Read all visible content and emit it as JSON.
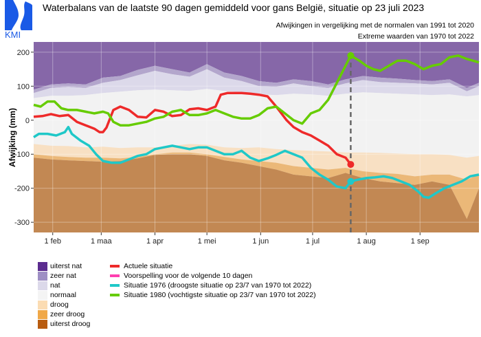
{
  "header": {
    "logo_text": "KMI",
    "title": "Waterbalans van de laatste 90 dagen gemiddeld voor gans België, situatie op 23 juli 2023",
    "subtitle1": "Afwijkingen in vergelijking met de normalen van 1991 tot 2020",
    "subtitle2": "Extreme waarden van 1970 tot 2022"
  },
  "legend_categories": [
    {
      "label": "uiterst nat",
      "color": "#5b2c8f"
    },
    {
      "label": "zeer nat",
      "color": "#9e8fc4"
    },
    {
      "label": "nat",
      "color": "#dcd9ea"
    },
    {
      "label": "normaal",
      "color": "#f4f4f4"
    },
    {
      "label": "droog",
      "color": "#fbdcb3"
    },
    {
      "label": "zeer droog",
      "color": "#f0a848"
    },
    {
      "label": "uiterst droog",
      "color": "#b85c10"
    }
  ],
  "legend_lines": [
    {
      "label": "Actuele situatie",
      "color": "#ee2a2a"
    },
    {
      "label": "Voorspelling voor de volgende 10 dagen",
      "color": "#ff3fb0"
    },
    {
      "label": "Situatie 1976 (droogste situatie op 23/7 van 1970 tot 2022)",
      "color": "#1fc8c8"
    },
    {
      "label": "Situatie 1980 (vochtigste situatie op 23/7 van 1970 tot 2022)",
      "color": "#66cc00"
    }
  ],
  "chart_data": {
    "type": "area",
    "title": "Waterbalans van de laatste 90 dagen gemiddeld voor gans België, situatie op 23 juli 2023",
    "xlabel": "",
    "ylabel": "Afwijking (mm)",
    "ylim": [
      -330,
      230
    ],
    "yticks": [
      200,
      100,
      0,
      -100,
      -200,
      -300
    ],
    "xtick_labels": [
      "1 feb",
      "1 maa",
      "1 apr",
      "1 mei",
      "1 jun",
      "1 jul",
      "1 aug",
      "1 sep"
    ],
    "xtick_days": [
      31,
      59,
      90,
      120,
      151,
      181,
      212,
      243
    ],
    "x_range_days": [
      20,
      277
    ],
    "current_date_day": 203,
    "grid": true,
    "bands_x_days": [
      20,
      30,
      40,
      50,
      60,
      70,
      80,
      90,
      100,
      110,
      120,
      130,
      140,
      150,
      160,
      170,
      180,
      190,
      200,
      210,
      220,
      230,
      240,
      250,
      260,
      270,
      277
    ],
    "bands": {
      "zeer_nat_top": [
        90,
        105,
        108,
        105,
        125,
        130,
        148,
        160,
        150,
        140,
        165,
        140,
        130,
        115,
        110,
        120,
        115,
        105,
        120,
        130,
        125,
        122,
        118,
        115,
        120,
        95,
        110
      ],
      "nat_top": [
        80,
        95,
        98,
        95,
        110,
        118,
        132,
        145,
        135,
        128,
        150,
        125,
        115,
        100,
        98,
        108,
        100,
        95,
        108,
        118,
        112,
        110,
        108,
        105,
        110,
        85,
        100
      ],
      "normaal_top": [
        65,
        72,
        72,
        74,
        80,
        84,
        88,
        90,
        88,
        86,
        92,
        86,
        82,
        76,
        74,
        78,
        76,
        72,
        78,
        82,
        80,
        78,
        76,
        74,
        76,
        70,
        74
      ],
      "droog_top": [
        -70,
        -75,
        -76,
        -80,
        -78,
        -82,
        -80,
        -80,
        -75,
        -70,
        -72,
        -80,
        -82,
        -80,
        -85,
        -88,
        -90,
        -92,
        -95,
        -95,
        -96,
        -98,
        -100,
        -100,
        -102,
        -110,
        -105
      ],
      "zeer_droog_top": [
        -100,
        -105,
        -108,
        -110,
        -110,
        -112,
        -108,
        -100,
        -95,
        -95,
        -100,
        -108,
        -115,
        -120,
        -125,
        -135,
        -140,
        -145,
        -140,
        -150,
        -155,
        -158,
        -165,
        -160,
        -160,
        -175,
        -160
      ],
      "uiterst_droog_top": [
        -110,
        -115,
        -118,
        -120,
        -122,
        -120,
        -112,
        -102,
        -100,
        -100,
        -105,
        -118,
        -125,
        -135,
        -145,
        -160,
        -165,
        -170,
        -155,
        -170,
        -180,
        -185,
        -190,
        -180,
        -190,
        -290,
        -200
      ]
    },
    "series": [
      {
        "name": "Actuele situatie",
        "color": "#ee2a2a",
        "x": [
          20,
          25,
          30,
          35,
          40,
          45,
          50,
          55,
          58,
          60,
          62,
          66,
          70,
          75,
          80,
          85,
          90,
          95,
          100,
          105,
          110,
          115,
          120,
          125,
          128,
          132,
          136,
          140,
          145,
          150,
          155,
          160,
          163,
          166,
          170,
          175,
          180,
          185,
          190,
          195,
          200,
          203
        ],
        "values": [
          10,
          12,
          18,
          12,
          15,
          -5,
          -15,
          -25,
          -35,
          -35,
          -22,
          30,
          40,
          30,
          10,
          8,
          30,
          25,
          12,
          15,
          32,
          35,
          30,
          40,
          75,
          80,
          80,
          80,
          78,
          75,
          70,
          40,
          20,
          0,
          -20,
          -35,
          -45,
          -60,
          -75,
          -100,
          -110,
          -130
        ]
      },
      {
        "name": "Situatie 1976",
        "color": "#1fc8c8",
        "x": [
          20,
          23,
          28,
          33,
          38,
          40,
          42,
          47,
          52,
          56,
          60,
          65,
          70,
          75,
          80,
          85,
          90,
          95,
          100,
          105,
          110,
          115,
          120,
          125,
          130,
          135,
          140,
          145,
          150,
          155,
          160,
          165,
          170,
          175,
          180,
          185,
          190,
          195,
          200,
          203,
          207,
          212,
          217,
          222,
          227,
          232,
          237,
          242,
          245,
          248,
          252,
          257,
          262,
          267,
          272,
          277
        ],
        "values": [
          -50,
          -40,
          -40,
          -45,
          -35,
          -20,
          -40,
          -60,
          -75,
          -100,
          -120,
          -125,
          -125,
          -115,
          -105,
          -100,
          -85,
          -80,
          -75,
          -80,
          -85,
          -80,
          -80,
          -90,
          -100,
          -100,
          -90,
          -110,
          -120,
          -112,
          -102,
          -90,
          -100,
          -110,
          -140,
          -160,
          -175,
          -195,
          -200,
          -180,
          -175,
          -170,
          -168,
          -165,
          -170,
          -180,
          -190,
          -210,
          -225,
          -228,
          -215,
          -200,
          -190,
          -180,
          -165,
          -160
        ]
      },
      {
        "name": "Situatie 1980",
        "color": "#66cc00",
        "x": [
          20,
          24,
          28,
          32,
          36,
          40,
          45,
          50,
          55,
          60,
          63,
          66,
          70,
          75,
          80,
          85,
          90,
          95,
          100,
          105,
          110,
          115,
          120,
          125,
          130,
          135,
          140,
          145,
          150,
          155,
          160,
          165,
          170,
          175,
          180,
          185,
          190,
          195,
          200,
          203,
          208,
          212,
          216,
          220,
          225,
          230,
          235,
          240,
          245,
          250,
          255,
          260,
          265,
          270,
          277
        ],
        "values": [
          45,
          40,
          55,
          55,
          35,
          30,
          30,
          25,
          20,
          25,
          20,
          -5,
          -15,
          -15,
          -10,
          -5,
          5,
          10,
          25,
          30,
          15,
          15,
          20,
          30,
          20,
          10,
          5,
          5,
          15,
          35,
          40,
          20,
          0,
          -10,
          20,
          30,
          60,
          110,
          160,
          190,
          175,
          160,
          150,
          145,
          160,
          175,
          175,
          165,
          150,
          160,
          165,
          185,
          190,
          180,
          170
        ]
      }
    ],
    "markers": [
      {
        "series": "Actuele situatie",
        "x": 203,
        "y": -130
      },
      {
        "series": "Situatie 1976",
        "x": 203,
        "y": -180
      },
      {
        "series": "Situatie 1980",
        "x": 203,
        "y": 190
      }
    ]
  }
}
